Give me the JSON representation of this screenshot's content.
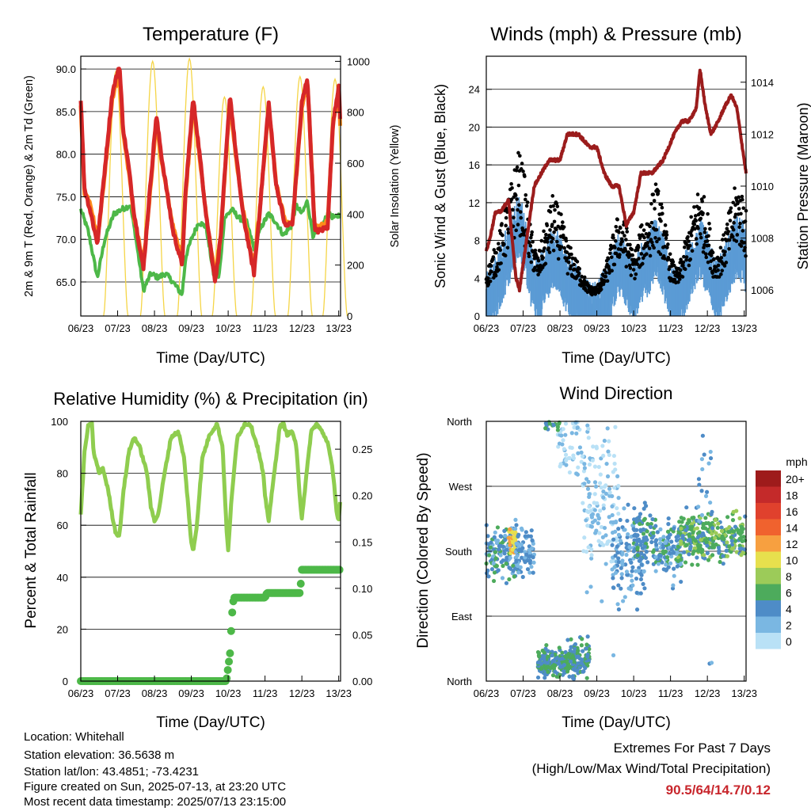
{
  "chart_data": [
    {
      "type": "line",
      "title": "Temperature (F)",
      "xlabel": "Time (Day/UTC)",
      "ylabel": "2m & 9m T (Red, Orange) & 2m Td (Green)",
      "y2label": "Solar Insolation (Yellow)",
      "x_ticks": [
        "06/23",
        "07/23",
        "08/23",
        "09/23",
        "10/23",
        "11/23",
        "12/23",
        "13/23"
      ],
      "y_ticks": [
        "65.0",
        "70.0",
        "75.0",
        "80.0",
        "85.0",
        "90.0"
      ],
      "y2_ticks": [
        "0",
        "200",
        "400",
        "600",
        "800",
        "1000"
      ],
      "ylim": [
        61,
        91.5
      ],
      "y2lim": [
        0,
        1020
      ],
      "grid": true,
      "series": [
        {
          "color": "#d62728",
          "values": [
            [
              0,
              86.5
            ],
            [
              0.1,
              76
            ],
            [
              0.25,
              73.5
            ],
            [
              0.45,
              69.5
            ],
            [
              0.6,
              76
            ],
            [
              0.85,
              87
            ],
            [
              1.05,
              90.5
            ],
            [
              1.15,
              83
            ],
            [
              1.3,
              78.5
            ],
            [
              1.45,
              73
            ],
            [
              1.7,
              66.5
            ],
            [
              1.85,
              74.5
            ],
            [
              2.05,
              84.5
            ],
            [
              2.2,
              79.5
            ],
            [
              2.5,
              71
            ],
            [
              2.75,
              67
            ],
            [
              2.85,
              76
            ],
            [
              3.05,
              86.5
            ],
            [
              3.2,
              81
            ],
            [
              3.4,
              73
            ],
            [
              3.65,
              65
            ],
            [
              3.8,
              70.5
            ],
            [
              4.05,
              87
            ],
            [
              4.2,
              80.5
            ],
            [
              4.4,
              73
            ],
            [
              4.7,
              66
            ],
            [
              4.85,
              73
            ],
            [
              5.1,
              86
            ],
            [
              5.3,
              76.5
            ],
            [
              5.55,
              71.5
            ],
            [
              5.75,
              72
            ],
            [
              6.0,
              86
            ],
            [
              6.15,
              89
            ],
            [
              6.35,
              71
            ],
            [
              6.5,
              71
            ],
            [
              6.7,
              71.5
            ],
            [
              6.85,
              84
            ],
            [
              7.0,
              88
            ],
            [
              7.05,
              83
            ]
          ]
        },
        {
          "color": "#ff8c1a",
          "values": [
            [
              0,
              85.5
            ],
            [
              0.1,
              75.5
            ],
            [
              0.25,
              74.5
            ],
            [
              0.45,
              70
            ],
            [
              0.6,
              75.5
            ],
            [
              0.85,
              86.5
            ],
            [
              1.05,
              89.5
            ],
            [
              1.15,
              82.5
            ],
            [
              1.3,
              78
            ],
            [
              1.45,
              72.5
            ],
            [
              1.7,
              67
            ],
            [
              1.85,
              74
            ],
            [
              2.05,
              84
            ],
            [
              2.2,
              79
            ],
            [
              2.5,
              71.5
            ],
            [
              2.75,
              67.5
            ],
            [
              2.85,
              75.5
            ],
            [
              3.05,
              86
            ],
            [
              3.2,
              80.5
            ],
            [
              3.4,
              73
            ],
            [
              3.65,
              65.5
            ],
            [
              3.8,
              70.5
            ],
            [
              4.05,
              86.5
            ],
            [
              4.2,
              80
            ],
            [
              4.4,
              73.5
            ],
            [
              4.7,
              66.5
            ],
            [
              4.85,
              73
            ],
            [
              5.1,
              85.5
            ],
            [
              5.3,
              76.5
            ],
            [
              5.55,
              72
            ],
            [
              5.75,
              72
            ],
            [
              6.0,
              85.5
            ],
            [
              6.15,
              88.5
            ],
            [
              6.35,
              71.5
            ],
            [
              6.5,
              71.5
            ],
            [
              6.7,
              72
            ],
            [
              6.85,
              83.5
            ],
            [
              7.0,
              87.5
            ],
            [
              7.05,
              82.5
            ]
          ]
        },
        {
          "color": "#4db848",
          "values": [
            [
              0,
              73.5
            ],
            [
              0.2,
              71
            ],
            [
              0.45,
              65.5
            ],
            [
              0.65,
              70
            ],
            [
              0.9,
              73
            ],
            [
              1.1,
              73.5
            ],
            [
              1.35,
              74
            ],
            [
              1.5,
              70
            ],
            [
              1.7,
              64
            ],
            [
              1.9,
              66
            ],
            [
              2.1,
              65.5
            ],
            [
              2.3,
              66
            ],
            [
              2.5,
              65
            ],
            [
              2.75,
              63.5
            ],
            [
              2.85,
              68
            ],
            [
              3.0,
              70
            ],
            [
              3.2,
              72
            ],
            [
              3.4,
              71.5
            ],
            [
              3.6,
              66
            ],
            [
              3.75,
              65.5
            ],
            [
              3.9,
              72.5
            ],
            [
              4.1,
              73.5
            ],
            [
              4.3,
              72.5
            ],
            [
              4.5,
              72
            ],
            [
              4.7,
              69
            ],
            [
              4.9,
              71.5
            ],
            [
              5.1,
              73
            ],
            [
              5.3,
              72
            ],
            [
              5.5,
              70.5
            ],
            [
              5.7,
              71.5
            ],
            [
              5.85,
              74
            ],
            [
              6.0,
              73
            ],
            [
              6.15,
              74.5
            ],
            [
              6.3,
              70.5
            ],
            [
              6.5,
              71
            ],
            [
              6.7,
              73
            ],
            [
              6.9,
              72.5
            ],
            [
              7.05,
              73
            ]
          ]
        }
      ],
      "solar": {
        "color": "#f5d547",
        "peaks": [
          [
            0.95,
            960
          ],
          [
            1.95,
            1000
          ],
          [
            2.95,
            1010
          ],
          [
            3.9,
            860
          ],
          [
            4.95,
            900
          ],
          [
            5.95,
            940
          ],
          [
            6.9,
            930
          ]
        ]
      }
    },
    {
      "type": "scatter",
      "title": "Winds (mph) & Pressure (mb)",
      "xlabel": "Time (Day/UTC)",
      "ylabel": "Sonic Wind & Gust (Blue, Black)",
      "y2label": "Station Pressure (Maroon)",
      "x_ticks": [
        "06/23",
        "07/23",
        "08/23",
        "09/23",
        "10/23",
        "11/23",
        "12/23",
        "13/23"
      ],
      "y_ticks": [
        "0",
        "4",
        "8",
        "12",
        "16",
        "20",
        "24"
      ],
      "y2_ticks": [
        "1006",
        "1008",
        "1010",
        "1012",
        "1014"
      ],
      "ylim": [
        0,
        27.5
      ],
      "y2lim": [
        1005,
        1015
      ],
      "grid": true,
      "wind_profile": [
        [
          0,
          2
        ],
        [
          0.3,
          4
        ],
        [
          0.5,
          6
        ],
        [
          0.7,
          8
        ],
        [
          0.85,
          10
        ],
        [
          1.0,
          9
        ],
        [
          1.2,
          5
        ],
        [
          1.4,
          3
        ],
        [
          1.6,
          5
        ],
        [
          1.8,
          7
        ],
        [
          2.0,
          6
        ],
        [
          2.2,
          4
        ],
        [
          2.4,
          3
        ],
        [
          2.6,
          2
        ],
        [
          2.8,
          1
        ],
        [
          3.0,
          1
        ],
        [
          3.2,
          2
        ],
        [
          3.4,
          4
        ],
        [
          3.6,
          6
        ],
        [
          3.8,
          5
        ],
        [
          4.0,
          3
        ],
        [
          4.2,
          5
        ],
        [
          4.4,
          6
        ],
        [
          4.6,
          8
        ],
        [
          4.8,
          6
        ],
        [
          5.0,
          3
        ],
        [
          5.2,
          2
        ],
        [
          5.4,
          4
        ],
        [
          5.6,
          6
        ],
        [
          5.8,
          8
        ],
        [
          6.0,
          6
        ],
        [
          6.2,
          3
        ],
        [
          6.4,
          4
        ],
        [
          6.6,
          6
        ],
        [
          6.8,
          8
        ],
        [
          7.0,
          7
        ],
        [
          7.05,
          6
        ]
      ],
      "pressure": [
        [
          0,
          1007.5
        ],
        [
          0.1,
          1008
        ],
        [
          0.25,
          1009
        ],
        [
          0.4,
          1009
        ],
        [
          0.6,
          1009.5
        ],
        [
          0.8,
          1006.5
        ],
        [
          0.9,
          1006
        ],
        [
          1.1,
          1008
        ],
        [
          1.3,
          1010
        ],
        [
          1.5,
          1010.5
        ],
        [
          1.7,
          1011
        ],
        [
          2.0,
          1011
        ],
        [
          2.2,
          1012
        ],
        [
          2.5,
          1012
        ],
        [
          2.8,
          1011.5
        ],
        [
          3.0,
          1011.5
        ],
        [
          3.2,
          1010.5
        ],
        [
          3.4,
          1010
        ],
        [
          3.6,
          1010
        ],
        [
          3.8,
          1008.5
        ],
        [
          4.0,
          1009
        ],
        [
          4.2,
          1010.5
        ],
        [
          4.5,
          1010.5
        ],
        [
          4.8,
          1011
        ],
        [
          5.1,
          1012
        ],
        [
          5.3,
          1012.5
        ],
        [
          5.5,
          1012.5
        ],
        [
          5.7,
          1013
        ],
        [
          5.8,
          1014.5
        ],
        [
          5.95,
          1013
        ],
        [
          6.1,
          1012
        ],
        [
          6.3,
          1012.5
        ],
        [
          6.45,
          1013
        ],
        [
          6.65,
          1013.5
        ],
        [
          6.8,
          1013
        ],
        [
          6.9,
          1012
        ],
        [
          7.0,
          1011
        ],
        [
          7.05,
          1010.5
        ]
      ],
      "colors": {
        "sonic": "#5b9bd5",
        "gust": "#000000",
        "pressure": "#9b1c1c"
      }
    },
    {
      "type": "line",
      "title": "Relative Humidity (%) & Precipitation (in)",
      "xlabel": "Time (Day/UTC)",
      "ylabel": "Percent & Total Rainfall",
      "x_ticks": [
        "06/23",
        "07/23",
        "08/23",
        "09/23",
        "10/23",
        "11/23",
        "12/23",
        "13/23"
      ],
      "y_ticks": [
        "0",
        "20",
        "40",
        "60",
        "80",
        "100"
      ],
      "y2_ticks": [
        "0.00",
        "0.05",
        "0.10",
        "0.15",
        "0.20",
        "0.25"
      ],
      "ylim": [
        0,
        100
      ],
      "y2lim": [
        0,
        0.28
      ],
      "grid": true,
      "rh": {
        "color": "#8fcd4f",
        "values": [
          [
            0,
            64
          ],
          [
            0.1,
            88
          ],
          [
            0.2,
            98
          ],
          [
            0.3,
            99
          ],
          [
            0.35,
            88
          ],
          [
            0.5,
            80
          ],
          [
            0.6,
            82
          ],
          [
            0.75,
            73
          ],
          [
            0.85,
            64
          ],
          [
            0.95,
            57
          ],
          [
            1.05,
            56
          ],
          [
            1.15,
            72
          ],
          [
            1.3,
            88
          ],
          [
            1.45,
            94
          ],
          [
            1.6,
            90
          ],
          [
            1.8,
            80
          ],
          [
            1.9,
            67
          ],
          [
            2.0,
            62
          ],
          [
            2.1,
            64
          ],
          [
            2.25,
            78
          ],
          [
            2.45,
            94
          ],
          [
            2.65,
            96
          ],
          [
            2.8,
            86
          ],
          [
            2.9,
            70
          ],
          [
            3.0,
            53
          ],
          [
            3.05,
            50
          ],
          [
            3.15,
            60
          ],
          [
            3.3,
            86
          ],
          [
            3.5,
            95
          ],
          [
            3.7,
            99
          ],
          [
            3.85,
            90
          ],
          [
            3.95,
            60
          ],
          [
            4.0,
            50
          ],
          [
            4.1,
            72
          ],
          [
            4.25,
            94
          ],
          [
            4.45,
            99
          ],
          [
            4.6,
            99
          ],
          [
            4.8,
            90
          ],
          [
            4.95,
            80
          ],
          [
            5.0,
            71
          ],
          [
            5.1,
            62
          ],
          [
            5.25,
            80
          ],
          [
            5.4,
            98
          ],
          [
            5.5,
            99
          ],
          [
            5.6,
            95
          ],
          [
            5.75,
            96
          ],
          [
            5.85,
            90
          ],
          [
            5.95,
            70
          ],
          [
            6.0,
            63
          ],
          [
            6.1,
            76
          ],
          [
            6.25,
            96
          ],
          [
            6.4,
            99
          ],
          [
            6.55,
            96
          ],
          [
            6.7,
            92
          ],
          [
            6.85,
            80
          ],
          [
            6.95,
            64
          ],
          [
            7.0,
            62
          ],
          [
            7.05,
            70
          ]
        ]
      },
      "precip": {
        "color": "#4db848",
        "values": [
          [
            0,
            0
          ],
          [
            3.95,
            0
          ],
          [
            4.05,
            0.03
          ],
          [
            4.1,
            0.07
          ],
          [
            4.15,
            0.09
          ],
          [
            5.0,
            0.09
          ],
          [
            5.05,
            0.095
          ],
          [
            5.95,
            0.095
          ],
          [
            6.0,
            0.12
          ],
          [
            7.05,
            0.12
          ]
        ]
      }
    },
    {
      "type": "scatter",
      "title": "Wind Direction",
      "xlabel": "Time (Day/UTC)",
      "ylabel": "Direction (Colored By Speed)",
      "x_ticks": [
        "06/23",
        "07/23",
        "08/23",
        "09/23",
        "10/23",
        "11/23",
        "12/23",
        "13/23"
      ],
      "y_ticks": [
        "North",
        "East",
        "South",
        "West",
        "North"
      ],
      "colorbar_title": "mph",
      "colorbar_labels": [
        "20+",
        "18",
        "16",
        "14",
        "12",
        "10",
        "8",
        "6",
        "4",
        "2",
        "0"
      ],
      "colorbar_colors": [
        "#9e1b1b",
        "#c42a2a",
        "#e0412d",
        "#f0622e",
        "#f7a040",
        "#e7e04d",
        "#9ccb59",
        "#4dab5c",
        "#4e8cc7",
        "#7ab7e2",
        "#b9e1f6"
      ]
    }
  ],
  "footer": {
    "location": "Location: Whitehall",
    "elevation": "Station elevation: 36.5638 m",
    "latlon": "Station lat/lon: 43.4851; -73.4231",
    "created": "Figure created on Sun, 2025-07-13, at 23:20 UTC",
    "recent": "Most recent data timestamp: 2025/07/13 23:15:00"
  },
  "extremes": {
    "title": "Extremes For Past 7 Days",
    "subtitle": "(High/Low/Max Wind/Total Precipitation)",
    "values": "90.5/64/14.7/0.12"
  }
}
